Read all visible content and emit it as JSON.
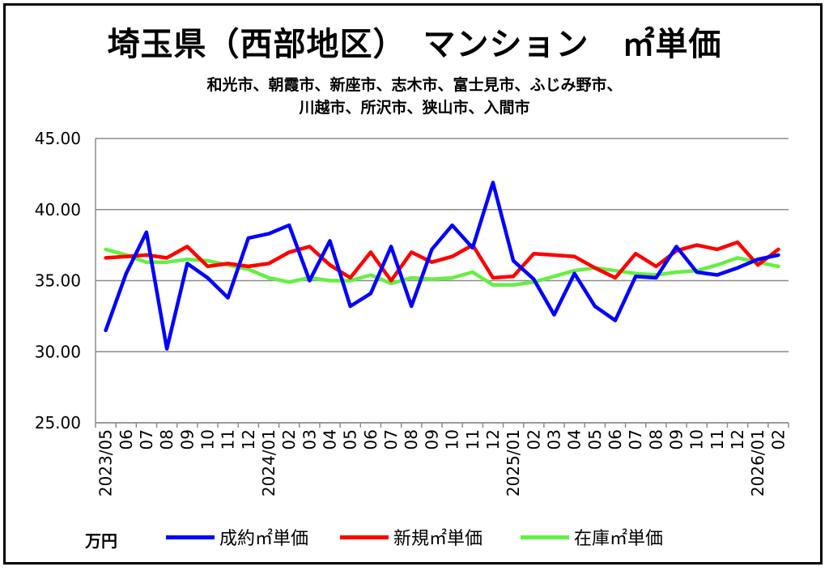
{
  "title": "埼玉県（西部地区）　マンション　㎡単価",
  "subtitle_line1": "和光市、朝霞市、新座市、志木市、富士見市、ふじみ野市、",
  "subtitle_line2": "川越市、所沢市、狭山市、入間市",
  "unit_label": "万円",
  "chart_data": {
    "type": "line",
    "title": "埼玉県（西部地区）　マンション　㎡単価",
    "ylabel": "万円",
    "ylim": [
      25,
      45
    ],
    "yticks": [
      "25.00",
      "30.00",
      "35.00",
      "40.00",
      "45.00"
    ],
    "grid": true,
    "legend_position": "bottom",
    "categories": [
      "2023/05",
      "06",
      "07",
      "08",
      "09",
      "10",
      "11",
      "12",
      "2024/01",
      "02",
      "03",
      "04",
      "05",
      "06",
      "07",
      "08",
      "09",
      "10",
      "11",
      "12",
      "2025/01",
      "02",
      "03",
      "04",
      "05",
      "06",
      "07",
      "08",
      "09",
      "10",
      "11",
      "12",
      "2026/01",
      "02"
    ],
    "series": [
      {
        "name": "成約㎡単価",
        "color": "#0000ff",
        "values": [
          31.5,
          35.5,
          38.4,
          30.2,
          36.2,
          35.2,
          33.8,
          38.0,
          38.3,
          38.9,
          35.0,
          37.8,
          33.2,
          34.1,
          37.4,
          33.2,
          37.2,
          38.9,
          37.3,
          41.9,
          36.4,
          35.1,
          32.6,
          35.5,
          33.2,
          32.2,
          35.3,
          35.2,
          37.4,
          35.6,
          35.4,
          35.9,
          36.5,
          36.8
        ]
      },
      {
        "name": "新規㎡単価",
        "color": "#ff0000",
        "values": [
          36.6,
          36.7,
          36.8,
          36.6,
          37.4,
          36.0,
          36.2,
          36.0,
          36.2,
          37.0,
          37.4,
          36.1,
          35.2,
          37.0,
          35.0,
          37.0,
          36.3,
          36.7,
          37.5,
          35.2,
          35.3,
          36.9,
          36.8,
          36.7,
          35.9,
          35.2,
          36.9,
          36.0,
          37.1,
          37.5,
          37.2,
          37.7,
          36.1,
          37.2
        ]
      },
      {
        "name": "在庫㎡単価",
        "color": "#66ee44",
        "values": [
          37.2,
          36.8,
          36.3,
          36.3,
          36.5,
          36.4,
          36.1,
          35.8,
          35.2,
          34.9,
          35.2,
          35.0,
          35.0,
          35.4,
          34.8,
          35.2,
          35.1,
          35.2,
          35.6,
          34.7,
          34.7,
          34.9,
          35.3,
          35.7,
          35.9,
          35.7,
          35.5,
          35.4,
          35.6,
          35.7,
          36.1,
          36.6,
          36.3,
          36.0
        ]
      }
    ]
  }
}
